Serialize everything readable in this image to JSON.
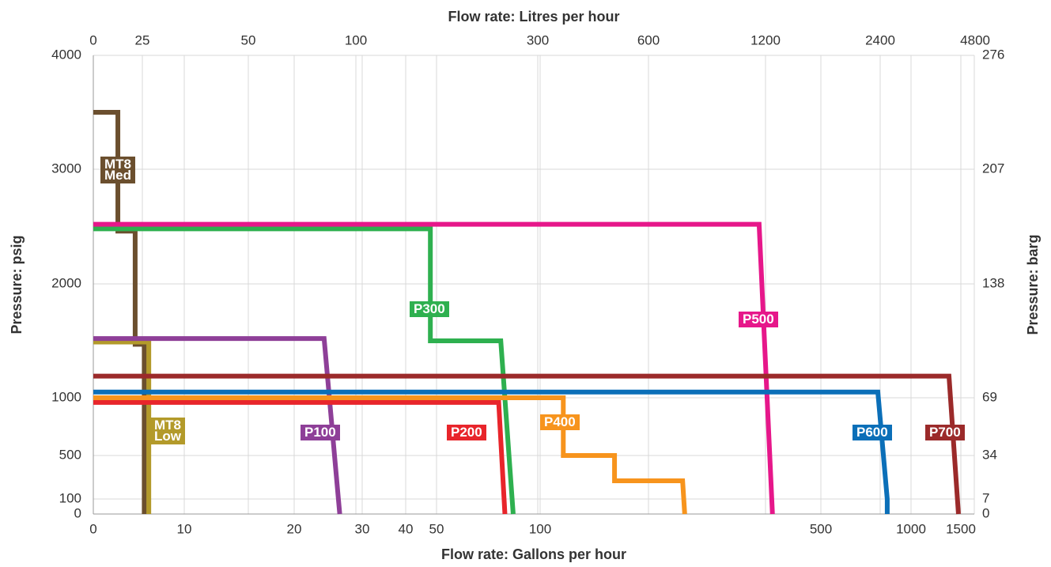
{
  "chart_data": {
    "type": "line",
    "x_label": "Flow rate: Gallons per hour",
    "x2_label": "Flow rate: Litres per hour",
    "y_label": "Pressure: psig",
    "y2_label": "Pressure: barg",
    "xlim": [
      0,
      1500
    ],
    "xticks": [
      0,
      10,
      20,
      30,
      40,
      50,
      100,
      500,
      1000,
      1500
    ],
    "x2lim": [
      0,
      4800
    ],
    "x2ticks": [
      0,
      25,
      50,
      100,
      300,
      600,
      1200,
      2400,
      4800
    ],
    "ylim": [
      0,
      4000
    ],
    "yticks": [
      0,
      100,
      500,
      1000,
      2000,
      3000,
      4000
    ],
    "y2lim": [
      0,
      276
    ],
    "y2ticks": [
      0,
      7,
      34,
      69,
      138,
      207,
      276
    ],
    "grid": true,
    "series": [
      {
        "name": "MT8 Med",
        "color": "#6b4f2e",
        "x": [
          0,
          2.7,
          2.7,
          4.6,
          4.6,
          5.6,
          5.6
        ],
        "values": [
          3500,
          3500,
          2460,
          2460,
          1470,
          1470,
          0
        ]
      },
      {
        "name": "MT8 Low",
        "color": "#b39a2a",
        "x": [
          0,
          6.1,
          6.1
        ],
        "values": [
          1490,
          1490,
          0
        ]
      },
      {
        "name": "P100",
        "color": "#8e3f98",
        "x": [
          0,
          24.4,
          26.5,
          26.7
        ],
        "values": [
          1520,
          1520,
          100,
          0
        ]
      },
      {
        "name": "P200",
        "color": "#e8252b",
        "x": [
          0,
          80,
          83
        ],
        "values": [
          960,
          960,
          0
        ]
      },
      {
        "name": "P300",
        "color": "#2eb04f",
        "x": [
          0,
          48,
          48,
          81,
          87
        ],
        "values": [
          2480,
          2480,
          1500,
          1500,
          0
        ]
      },
      {
        "name": "P400",
        "color": "#f7941d",
        "x": [
          0,
          133,
          133,
          206,
          206,
          303,
          306
        ],
        "values": [
          1000,
          1000,
          500,
          500,
          267,
          267,
          0
        ]
      },
      {
        "name": "P500",
        "color": "#e6178a",
        "x": [
          0,
          412,
          431
        ],
        "values": [
          2520,
          2520,
          0
        ]
      },
      {
        "name": "P600",
        "color": "#0b6fb8",
        "x": [
          0,
          816,
          868,
          868
        ],
        "values": [
          1050,
          1050,
          100,
          0
        ]
      },
      {
        "name": "P700",
        "color": "#9b2a2a",
        "x": [
          0,
          1381,
          1476
        ],
        "values": [
          1190,
          1190,
          0
        ]
      }
    ]
  }
}
